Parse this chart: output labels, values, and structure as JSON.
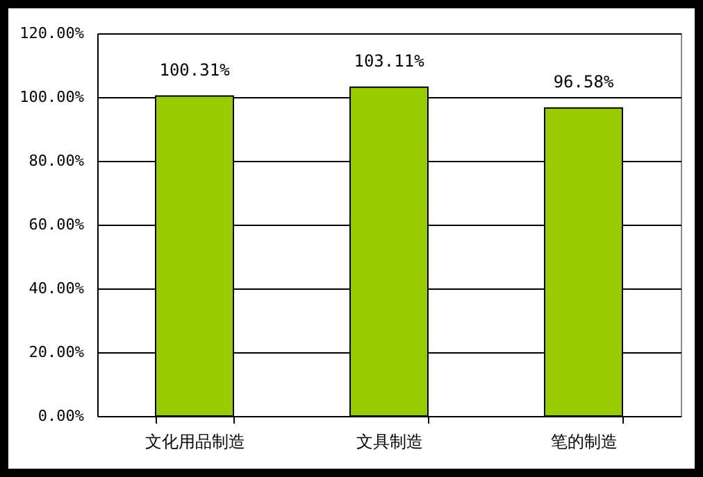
{
  "chart_data": {
    "type": "bar",
    "categories": [
      "文化用品制造",
      "文具制造",
      "笔的制造"
    ],
    "values": [
      100.31,
      103.11,
      96.58
    ],
    "color": "#99cc00",
    "value_labels": [
      "100.31%",
      "103.11%",
      "96.58%"
    ],
    "ylim": [
      0,
      120
    ],
    "yticks": [
      {
        "value": 0,
        "label": "0.00%"
      },
      {
        "value": 20,
        "label": "20.00%"
      },
      {
        "value": 40,
        "label": "40.00%"
      },
      {
        "value": 60,
        "label": "60.00%"
      },
      {
        "value": 80,
        "label": "80.00%"
      },
      {
        "value": 100,
        "label": "100.00%"
      },
      {
        "value": 120,
        "label": "120.00%"
      }
    ],
    "grid": "y"
  }
}
